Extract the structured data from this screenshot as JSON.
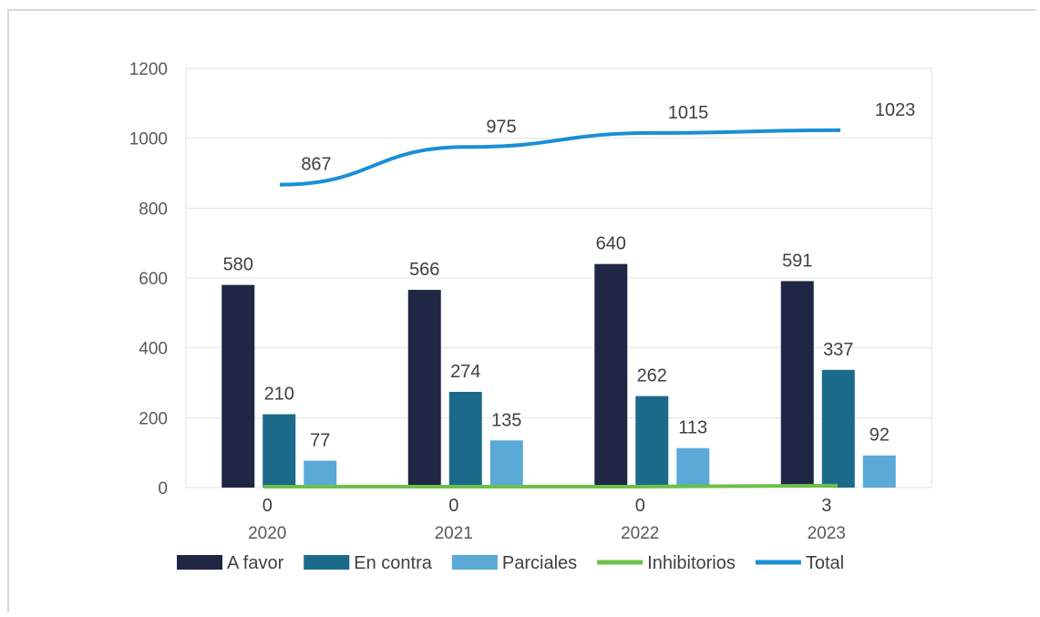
{
  "chart_data": {
    "type": "bar",
    "categories": [
      "2020",
      "2021",
      "2022",
      "2023"
    ],
    "ylim": [
      0,
      1200
    ],
    "yticks": [
      0,
      200,
      400,
      600,
      800,
      1000,
      1200
    ],
    "grid": true,
    "legend_position": "bottom",
    "series": [
      {
        "name": "A favor",
        "type": "bar",
        "color": "#1f2744",
        "values": [
          580,
          566,
          640,
          591
        ]
      },
      {
        "name": "En contra",
        "type": "bar",
        "color": "#1b6a8a",
        "values": [
          210,
          274,
          262,
          337
        ]
      },
      {
        "name": "Parciales",
        "type": "bar",
        "color": "#5ba9d6",
        "values": [
          77,
          135,
          113,
          92
        ]
      },
      {
        "name": "Inhibitorios",
        "type": "line",
        "color": "#6cc04a",
        "values": [
          0,
          0,
          0,
          3
        ]
      },
      {
        "name": "Total",
        "type": "line",
        "color": "#1a8fd4",
        "values": [
          867,
          975,
          1015,
          1023
        ]
      }
    ]
  }
}
